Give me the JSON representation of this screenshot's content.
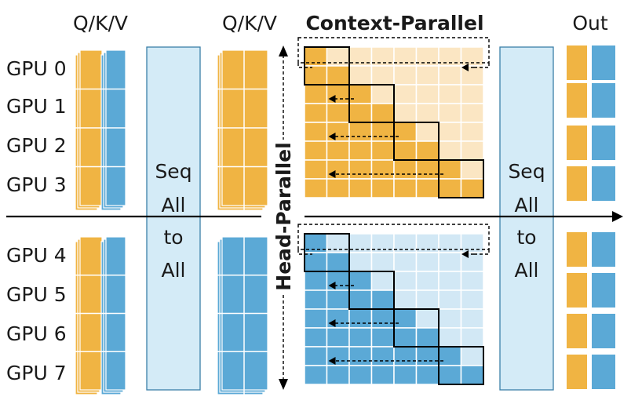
{
  "column_labels": {
    "qkv_in": "Q/K/V",
    "qkv_mid": "Q/K/V",
    "out": "Out"
  },
  "gpu_labels": [
    "GPU 0",
    "GPU 1",
    "GPU 2",
    "GPU 3",
    "GPU 4",
    "GPU 5",
    "GPU 6",
    "GPU 7"
  ],
  "all_to_all": {
    "lines": [
      "Seq",
      "All",
      "to",
      "All"
    ]
  },
  "context_parallel_label": "Context-Parallel",
  "head_parallel_label": "Head-Parallel",
  "colors": {
    "q": "#F0B443",
    "v": "#5BA9D6",
    "band": "#D4EBF7",
    "band_border": "#3b7fa8",
    "orange_dark": "#F0B443",
    "orange_light": "#FBE6C3",
    "blue_dark": "#5BA9D6",
    "blue_light": "#D2E8F5"
  }
}
